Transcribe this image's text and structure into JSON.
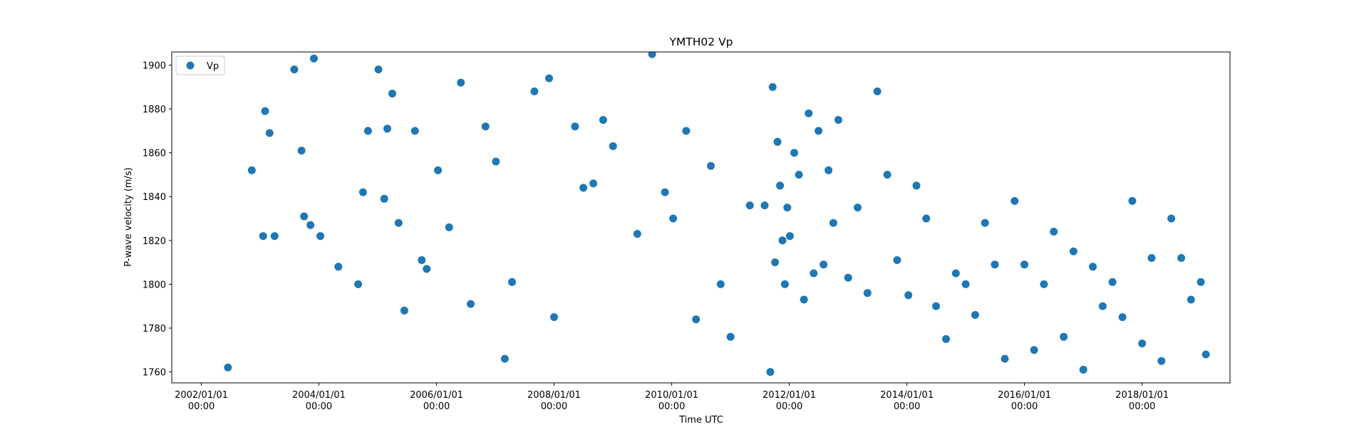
{
  "chart_data": {
    "type": "scatter",
    "title": "YMTH02 Vp",
    "xlabel": "Time UTC",
    "ylabel": "P-wave velocity (m/s)",
    "xlim": [
      "2001-07-01",
      "2019-07-01"
    ],
    "ylim": [
      1755,
      1906
    ],
    "grid": false,
    "legend": {
      "position": "top-left",
      "entries": [
        "Vp"
      ]
    },
    "x_ticks": [
      {
        "date": "2002-01-01",
        "line1": "2002/01/01",
        "line2": "00:00"
      },
      {
        "date": "2004-01-01",
        "line1": "2004/01/01",
        "line2": "00:00"
      },
      {
        "date": "2006-01-01",
        "line1": "2006/01/01",
        "line2": "00:00"
      },
      {
        "date": "2008-01-01",
        "line1": "2008/01/01",
        "line2": "00:00"
      },
      {
        "date": "2010-01-01",
        "line1": "2010/01/01",
        "line2": "00:00"
      },
      {
        "date": "2012-01-01",
        "line1": "2012/01/01",
        "line2": "00:00"
      },
      {
        "date": "2014-01-01",
        "line1": "2014/01/01",
        "line2": "00:00"
      },
      {
        "date": "2016-01-01",
        "line1": "2016/01/01",
        "line2": "00:00"
      },
      {
        "date": "2018-01-01",
        "line1": "2018/01/01",
        "line2": "00:00"
      }
    ],
    "y_ticks": [
      1760,
      1780,
      1800,
      1820,
      1840,
      1860,
      1880,
      1900
    ],
    "series": [
      {
        "name": "Vp",
        "color": "#1f77b4",
        "x": [
          "2002-06-15",
          "2002-11-10",
          "2003-01-20",
          "2003-02-01",
          "2003-03-01",
          "2003-04-01",
          "2003-08-01",
          "2003-09-15",
          "2003-10-01",
          "2003-11-10",
          "2003-12-01",
          "2004-01-10",
          "2004-05-01",
          "2004-09-01",
          "2004-10-01",
          "2004-11-01",
          "2005-01-05",
          "2005-02-10",
          "2005-03-01",
          "2005-04-01",
          "2005-05-10",
          "2005-06-15",
          "2005-08-20",
          "2005-10-01",
          "2005-11-01",
          "2006-01-10",
          "2006-03-20",
          "2006-06-01",
          "2006-08-01",
          "2006-11-01",
          "2007-01-05",
          "2007-03-01",
          "2007-04-15",
          "2007-09-01",
          "2007-12-01",
          "2008-01-01",
          "2008-05-10",
          "2008-07-01",
          "2008-09-01",
          "2008-11-01",
          "2009-01-01",
          "2009-06-01",
          "2009-09-01",
          "2009-11-20",
          "2010-01-10",
          "2010-04-01",
          "2010-06-01",
          "2010-09-01",
          "2010-11-01",
          "2011-01-01",
          "2011-05-01",
          "2011-08-01",
          "2011-09-05",
          "2011-09-20",
          "2011-10-05",
          "2011-10-20",
          "2011-11-05",
          "2011-11-20",
          "2011-12-05",
          "2011-12-20",
          "2012-01-05",
          "2012-02-01",
          "2012-03-01",
          "2012-04-01",
          "2012-05-01",
          "2012-06-01",
          "2012-07-01",
          "2012-08-01",
          "2012-09-01",
          "2012-10-01",
          "2012-11-01",
          "2013-01-01",
          "2013-03-01",
          "2013-05-01",
          "2013-07-01",
          "2013-09-01",
          "2013-11-01",
          "2014-01-10",
          "2014-03-01",
          "2014-05-01",
          "2014-07-01",
          "2014-09-01",
          "2014-11-01",
          "2015-01-01",
          "2015-03-01",
          "2015-05-01",
          "2015-07-01",
          "2015-09-01",
          "2015-11-01",
          "2016-01-01",
          "2016-03-01",
          "2016-05-01",
          "2016-07-01",
          "2016-09-01",
          "2016-11-01",
          "2017-01-01",
          "2017-03-01",
          "2017-05-01",
          "2017-07-01",
          "2017-09-01",
          "2017-11-01",
          "2018-01-01",
          "2018-03-01",
          "2018-05-01",
          "2018-07-01",
          "2018-09-01",
          "2018-11-01",
          "2019-01-01",
          "2019-02-01"
        ],
        "y": [
          1762,
          1852,
          1822,
          1879,
          1869,
          1822,
          1898,
          1861,
          1831,
          1827,
          1903,
          1822,
          1808,
          1800,
          1842,
          1870,
          1898,
          1839,
          1871,
          1887,
          1828,
          1788,
          1870,
          1811,
          1807,
          1852,
          1826,
          1892,
          1791,
          1872,
          1856,
          1766,
          1801,
          1888,
          1894,
          1785,
          1872,
          1844,
          1846,
          1875,
          1863,
          1823,
          1905,
          1842,
          1830,
          1870,
          1784,
          1854,
          1800,
          1776,
          1836,
          1836,
          1760,
          1890,
          1810,
          1865,
          1845,
          1820,
          1800,
          1835,
          1822,
          1860,
          1850,
          1793,
          1878,
          1805,
          1870,
          1809,
          1852,
          1828,
          1875,
          1803,
          1835,
          1796,
          1888,
          1850,
          1811,
          1795,
          1845,
          1830,
          1790,
          1775,
          1805,
          1800,
          1786,
          1828,
          1809,
          1766,
          1838,
          1809,
          1770,
          1800,
          1824,
          1776,
          1815,
          1761,
          1808,
          1790,
          1801,
          1785,
          1838,
          1773,
          1812,
          1765,
          1830,
          1812,
          1793,
          1801,
          1768
        ]
      }
    ]
  }
}
